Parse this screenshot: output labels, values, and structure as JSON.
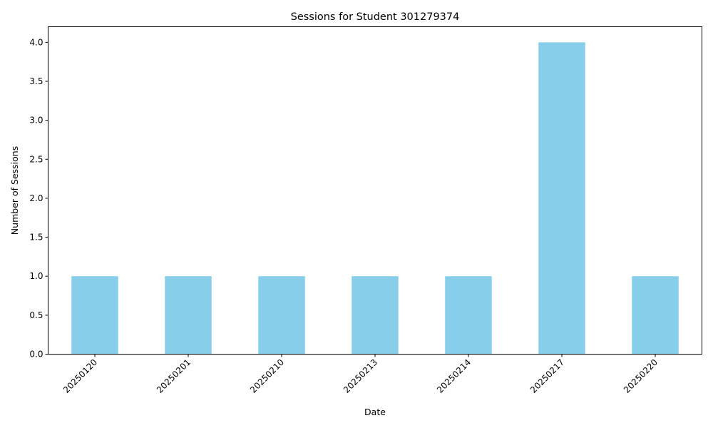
{
  "chart_data": {
    "type": "bar",
    "title": "Sessions for Student 301279374",
    "xlabel": "Date",
    "ylabel": "Number of Sessions",
    "categories": [
      "20250120",
      "20250201",
      "20250210",
      "20250213",
      "20250214",
      "20250217",
      "20250220"
    ],
    "values": [
      1,
      1,
      1,
      1,
      1,
      4,
      1
    ],
    "ylim": [
      0,
      4.2
    ],
    "yticks": [
      "0.0",
      "0.5",
      "1.0",
      "1.5",
      "2.0",
      "2.5",
      "3.0",
      "3.5",
      "4.0"
    ],
    "bar_color": "#87ceeb",
    "grid": false,
    "legend": "none"
  }
}
